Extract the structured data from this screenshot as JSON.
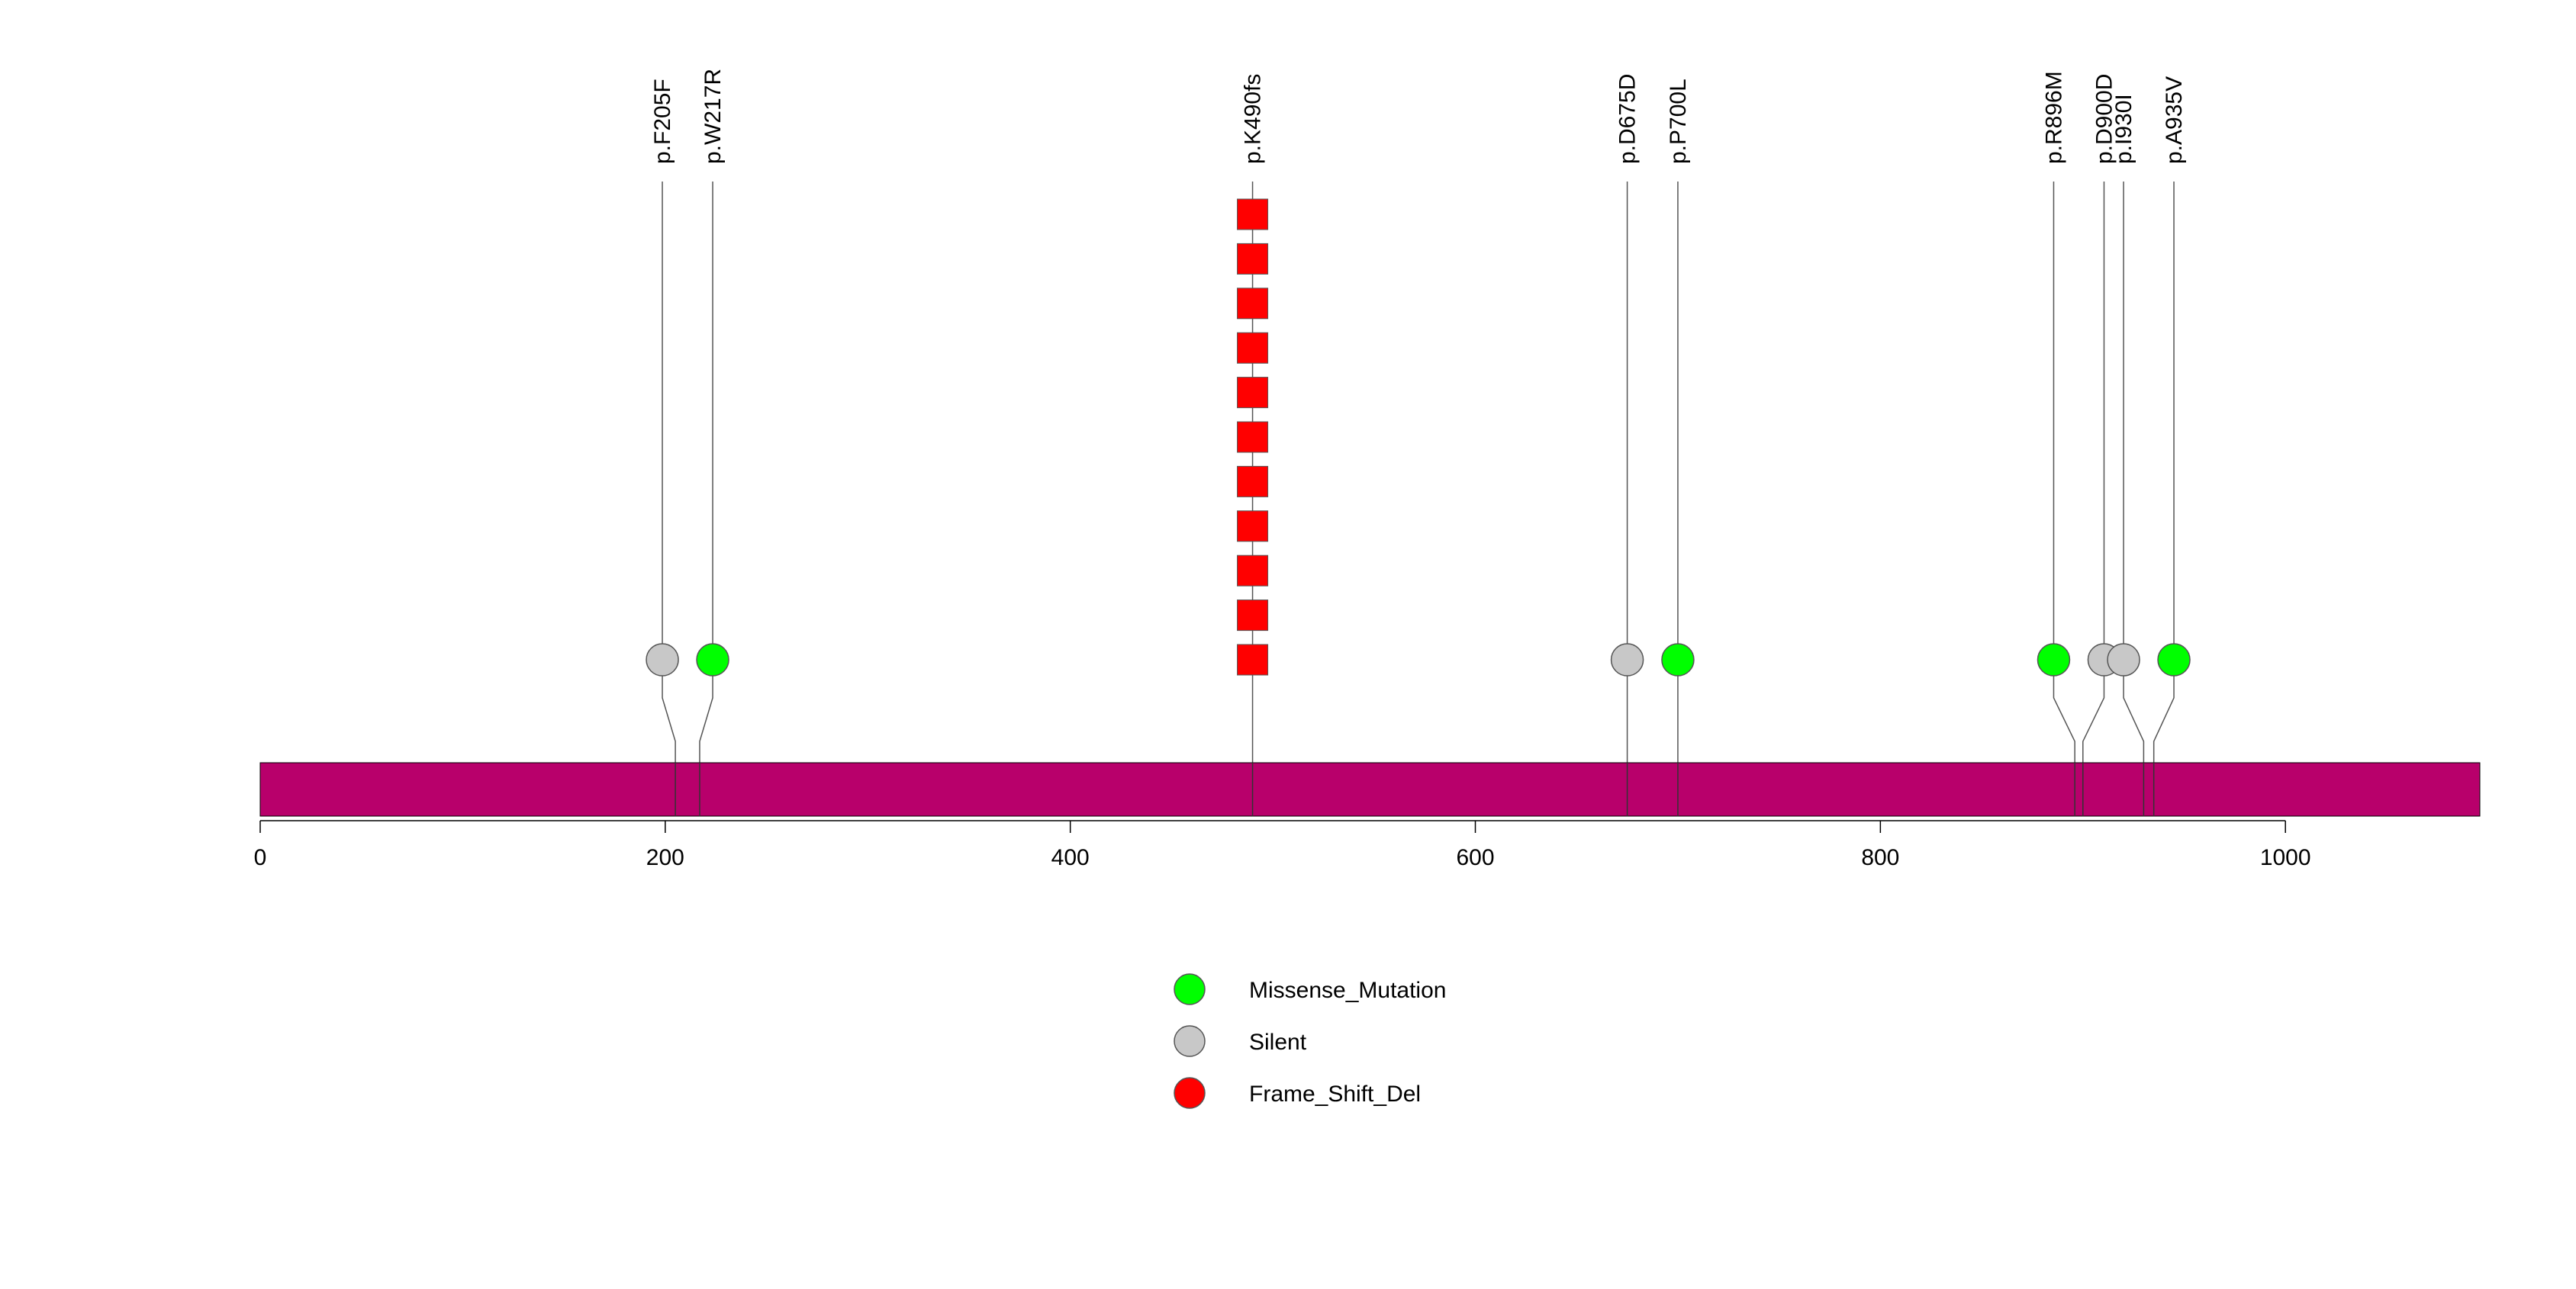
{
  "chart_data": {
    "type": "lollipop",
    "title": "",
    "xlabel": "",
    "ylabel": "",
    "xlim": [
      0,
      1096
    ],
    "x_ticks": [
      0,
      200,
      400,
      600,
      800,
      1000
    ],
    "protein_bar_color": "#B8006B",
    "mutations": [
      {
        "label": "p.F205F",
        "position": 205,
        "type": "Silent",
        "count": 1
      },
      {
        "label": "p.W217R",
        "position": 217,
        "type": "Missense_Mutation",
        "count": 1
      },
      {
        "label": "p.K490fs",
        "position": 490,
        "type": "Frame_Shift_Del",
        "count": 11
      },
      {
        "label": "p.D675D",
        "position": 675,
        "type": "Silent",
        "count": 1
      },
      {
        "label": "p.P700L",
        "position": 700,
        "type": "Missense_Mutation",
        "count": 1
      },
      {
        "label": "p.R896M",
        "position": 896,
        "type": "Missense_Mutation",
        "count": 1
      },
      {
        "label": "p.D900D",
        "position": 900,
        "type": "Silent",
        "count": 1
      },
      {
        "label": "p.I930I",
        "position": 930,
        "type": "Silent",
        "count": 1
      },
      {
        "label": "p.A935V",
        "position": 935,
        "type": "Missense_Mutation",
        "count": 1
      }
    ],
    "legend": [
      {
        "label": "Missense_Mutation",
        "color": "#00FF00",
        "shape": "circle"
      },
      {
        "label": "Silent",
        "color": "#C8C8C8",
        "shape": "circle"
      },
      {
        "label": "Frame_Shift_Del",
        "color": "#FF0000",
        "shape": "circle"
      }
    ]
  }
}
